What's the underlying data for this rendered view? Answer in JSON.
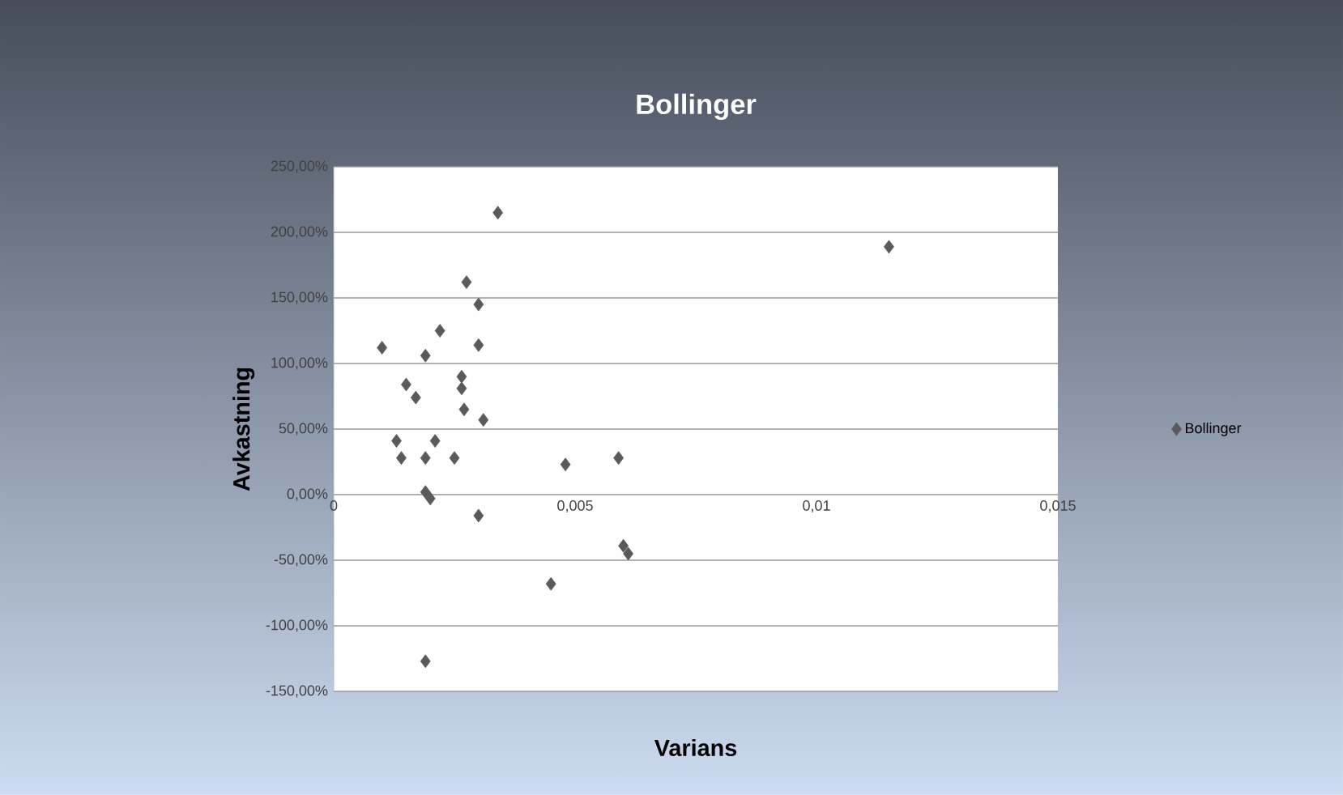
{
  "chart_data": {
    "type": "scatter",
    "title": "Bollinger",
    "xlabel": "Varians",
    "ylabel": "Avkastning",
    "series": [
      {
        "name": "Bollinger",
        "color": "#5a5a5a",
        "x": [
          0.0034,
          0.0115,
          0.00275,
          0.003,
          0.0022,
          0.001,
          0.003,
          0.0019,
          0.00265,
          0.00265,
          0.0015,
          0.0017,
          0.0027,
          0.0031,
          0.0013,
          0.0014,
          0.0021,
          0.0019,
          0.0025,
          0.0048,
          0.0059,
          0.0019,
          0.002,
          0.003,
          0.006,
          0.0061,
          0.0045,
          0.0019
        ],
        "values": [
          215,
          189,
          162,
          145,
          125,
          112,
          114,
          106,
          90,
          81,
          84,
          74,
          65,
          57,
          41,
          28,
          41,
          28,
          28,
          23,
          28,
          2,
          -3,
          -16,
          -39,
          -45,
          -68,
          -127
        ]
      }
    ],
    "xlim": [
      0,
      0.015
    ],
    "xticks": [
      {
        "value": 0,
        "label": "0"
      },
      {
        "value": 0.005,
        "label": "0,005"
      },
      {
        "value": 0.01,
        "label": "0,01"
      },
      {
        "value": 0.015,
        "label": "0,015"
      }
    ],
    "ylim": [
      -150,
      250
    ],
    "yticks": [
      {
        "value": -150,
        "label": "-150,00%"
      },
      {
        "value": -100,
        "label": "-100,00%"
      },
      {
        "value": -50,
        "label": "-50,00%"
      },
      {
        "value": 0,
        "label": "0,00%"
      },
      {
        "value": 50,
        "label": "50,00%"
      },
      {
        "value": 100,
        "label": "100,00%"
      },
      {
        "value": 150,
        "label": "150,00%"
      },
      {
        "value": 200,
        "label": "200,00%"
      },
      {
        "value": 250,
        "label": "250,00%"
      }
    ],
    "grid": "y",
    "legend": "right",
    "marker": "diamond"
  }
}
